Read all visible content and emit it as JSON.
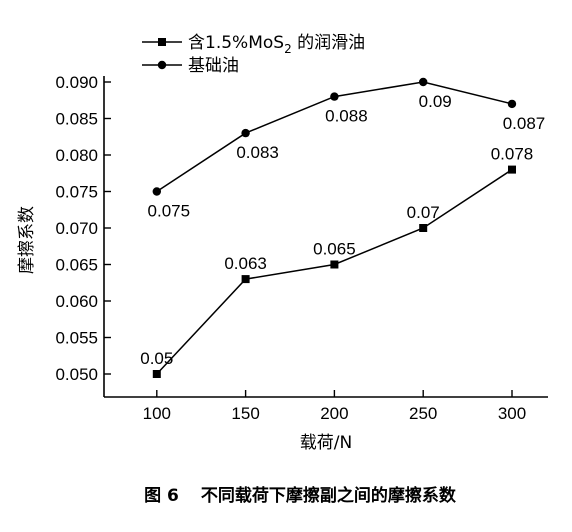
{
  "chart_data": {
    "type": "line",
    "x": [
      100,
      150,
      200,
      250,
      300
    ],
    "xticks": [
      "100",
      "150",
      "200",
      "250",
      "300"
    ],
    "xlim": [
      50,
      300
    ],
    "ylim": [
      0.045,
      0.09
    ],
    "yticks": [
      "0.050",
      "0.055",
      "0.060",
      "0.065",
      "0.070",
      "0.075",
      "0.080",
      "0.085",
      "0.090"
    ],
    "xlabel": "载荷/N",
    "ylabel": "摩擦系数",
    "legend_position": "top-left",
    "grid": false,
    "series": [
      {
        "name_prefix": "含1.5%MoS",
        "name_subscript": "2",
        "name_suffix": " 的润滑油",
        "marker": "square",
        "color": "#000000",
        "values": [
          0.05,
          0.063,
          0.065,
          0.07,
          0.078
        ],
        "labels": [
          "0.05",
          "0.063",
          "0.065",
          "0.07",
          "0.078"
        ],
        "label_side": [
          "above",
          "above",
          "above",
          "above",
          "above"
        ]
      },
      {
        "name": "基础油",
        "marker": "circle",
        "color": "#000000",
        "values": [
          0.075,
          0.083,
          0.088,
          0.09,
          0.087
        ],
        "labels": [
          "0.075",
          "0.083",
          "0.088",
          "0.09",
          "0.087"
        ],
        "label_side": [
          "below",
          "below",
          "below",
          "below",
          "below"
        ]
      }
    ]
  },
  "caption": {
    "figure_number": "图 6",
    "text": "不同载荷下摩擦副之间的摩擦系数"
  }
}
